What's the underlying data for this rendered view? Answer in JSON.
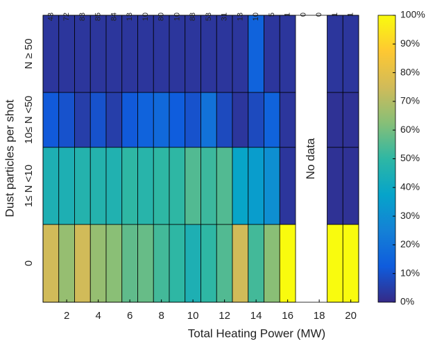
{
  "chart_data": {
    "type": "heatmap",
    "x_label": "Total Heating Power (MW)",
    "y_label": "Dust particles per shot",
    "x": [
      1,
      2,
      3,
      4,
      5,
      6,
      7,
      8,
      9,
      10,
      11,
      12,
      13,
      14,
      15,
      16,
      17,
      18,
      19,
      20
    ],
    "y_categories": [
      "0",
      "1≤ N <10",
      "10≤ N <50",
      "N ≥ 50"
    ],
    "z": [
      [
        75,
        65,
        75,
        65,
        63,
        57,
        58,
        53,
        50,
        45,
        50,
        55,
        75,
        53,
        63,
        100,
        null,
        null,
        100,
        100
      ],
      [
        45,
        45,
        47,
        47,
        46,
        50,
        48,
        50,
        50,
        55,
        52,
        55,
        38,
        35,
        30,
        3,
        null,
        null,
        2,
        2
      ],
      [
        12,
        10,
        5,
        10,
        5,
        12,
        15,
        17,
        13,
        10,
        20,
        8,
        3,
        8,
        15,
        3,
        null,
        null,
        2,
        2
      ],
      [
        3,
        3,
        3,
        3,
        3,
        3,
        3,
        3,
        3,
        3,
        3,
        3,
        3,
        15,
        3,
        3,
        null,
        null,
        3,
        3
      ]
    ],
    "counts": [
      43,
      72,
      83,
      85,
      84,
      13,
      10,
      80,
      10,
      88,
      53,
      31,
      13,
      10,
      5,
      1,
      0,
      0,
      1,
      1
    ],
    "annotation": "No data",
    "xlim": [
      0.5,
      20.5
    ],
    "xticks": [
      2,
      4,
      6,
      8,
      10,
      12,
      14,
      16,
      18,
      20
    ],
    "clim": [
      0,
      100
    ],
    "cticks": [
      {
        "value": 0,
        "label": "0%"
      },
      {
        "value": 10,
        "label": "10%"
      },
      {
        "value": 20,
        "label": "20%"
      },
      {
        "value": 30,
        "label": "30%"
      },
      {
        "value": 40,
        "label": "40%"
      },
      {
        "value": 50,
        "label": "50%"
      },
      {
        "value": 60,
        "label": "60%"
      },
      {
        "value": 70,
        "label": "70%"
      },
      {
        "value": 80,
        "label": "80%"
      },
      {
        "value": 90,
        "label": "90%"
      },
      {
        "value": 100,
        "label": "100%"
      }
    ],
    "colormap": [
      "#352a87",
      "#0f5cdd",
      "#1481d6",
      "#06a4ca",
      "#2eb7a4",
      "#87bf77",
      "#d1bb59",
      "#fec832",
      "#f9fb0e"
    ]
  }
}
